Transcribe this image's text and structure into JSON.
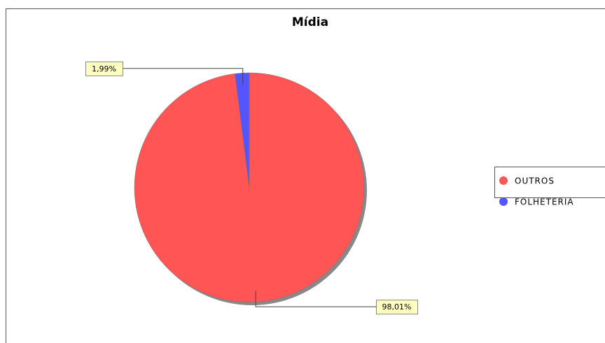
{
  "chart_data": {
    "type": "pie",
    "title": "Mídia",
    "categories": [
      "OUTROS",
      "FOLHETERIA"
    ],
    "values": [
      98.01,
      1.99
    ],
    "value_labels": [
      "98,01%",
      "1,99%"
    ],
    "colors": [
      "#ff5555",
      "#5555ff"
    ],
    "legend": "right"
  }
}
